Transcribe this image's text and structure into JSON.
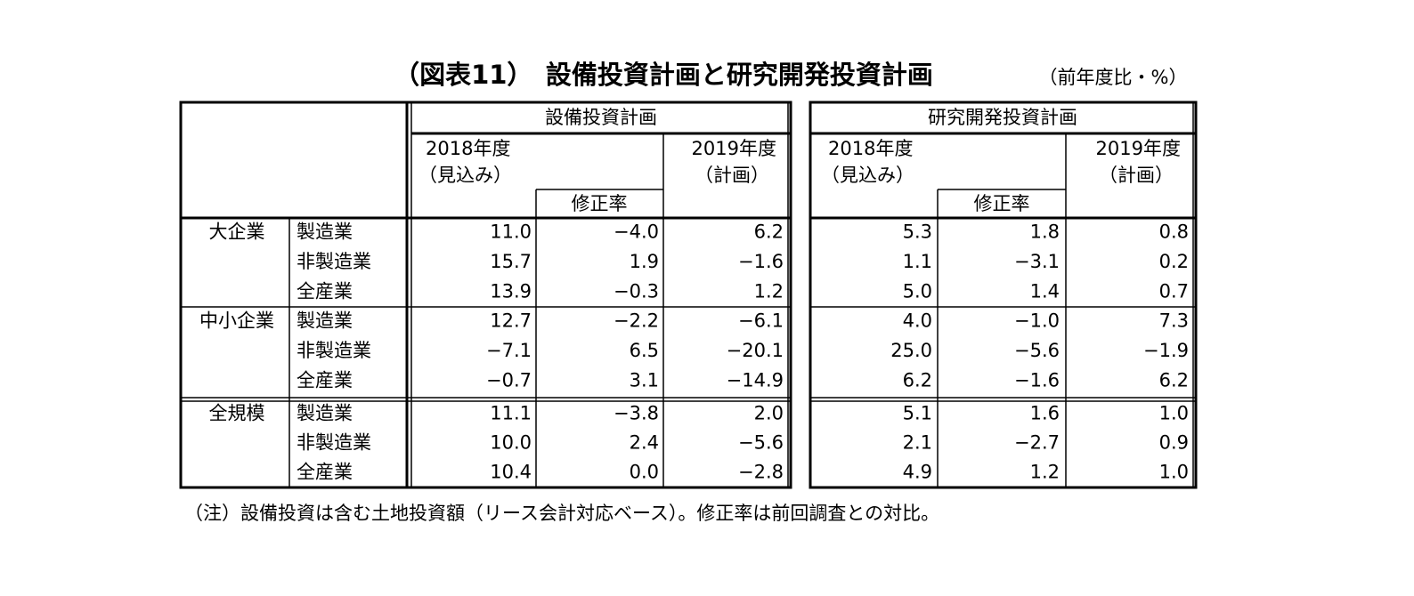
{
  "title": "（図表11）　設備投資計画と研究開発投資計画",
  "unit": "（前年度比・%）",
  "panels": [
    {
      "title": "設備投資計画",
      "col1": [
        "2018年度",
        "（見込み）"
      ],
      "col2": "修正率",
      "col3": [
        "2019年度",
        "（計画）"
      ]
    },
    {
      "title": "研究開発投資計画",
      "col1": [
        "2018年度",
        "（見込み）"
      ],
      "col2": "修正率",
      "col3": [
        "2019年度",
        "（計画）"
      ]
    }
  ],
  "groups": [
    {
      "size": "大企業",
      "rows": [
        {
          "industry": "製造業",
          "values": [
            "11.0",
            "−4.0",
            "6.2",
            "5.3",
            "1.8",
            "0.8"
          ]
        },
        {
          "industry": "非製造業",
          "values": [
            "15.7",
            "1.9",
            "−1.6",
            "1.1",
            "−3.1",
            "0.2"
          ]
        },
        {
          "industry": "全産業",
          "values": [
            "13.9",
            "−0.3",
            "1.2",
            "5.0",
            "1.4",
            "0.7"
          ]
        }
      ]
    },
    {
      "size": "中小企業",
      "rows": [
        {
          "industry": "製造業",
          "values": [
            "12.7",
            "−2.2",
            "−6.1",
            "4.0",
            "−1.0",
            "7.3"
          ]
        },
        {
          "industry": "非製造業",
          "values": [
            "−7.1",
            "6.5",
            "−20.1",
            "25.0",
            "−5.6",
            "−1.9"
          ]
        },
        {
          "industry": "全産業",
          "values": [
            "−0.7",
            "3.1",
            "−14.9",
            "6.2",
            "−1.6",
            "6.2"
          ]
        }
      ]
    },
    {
      "size": "全規模",
      "rows": [
        {
          "industry": "製造業",
          "values": [
            "11.1",
            "−3.8",
            "2.0",
            "5.1",
            "1.6",
            "1.0"
          ]
        },
        {
          "industry": "非製造業",
          "values": [
            "10.0",
            "2.4",
            "−5.6",
            "2.1",
            "−2.7",
            "0.9"
          ]
        },
        {
          "industry": "全産業",
          "values": [
            "10.4",
            "0.0",
            "−2.8",
            "4.9",
            "1.2",
            "1.0"
          ]
        }
      ]
    }
  ],
  "note": "（注）設備投資は含む土地投資額（リース会計対応ベース）。修正率は前回調査との対比。"
}
